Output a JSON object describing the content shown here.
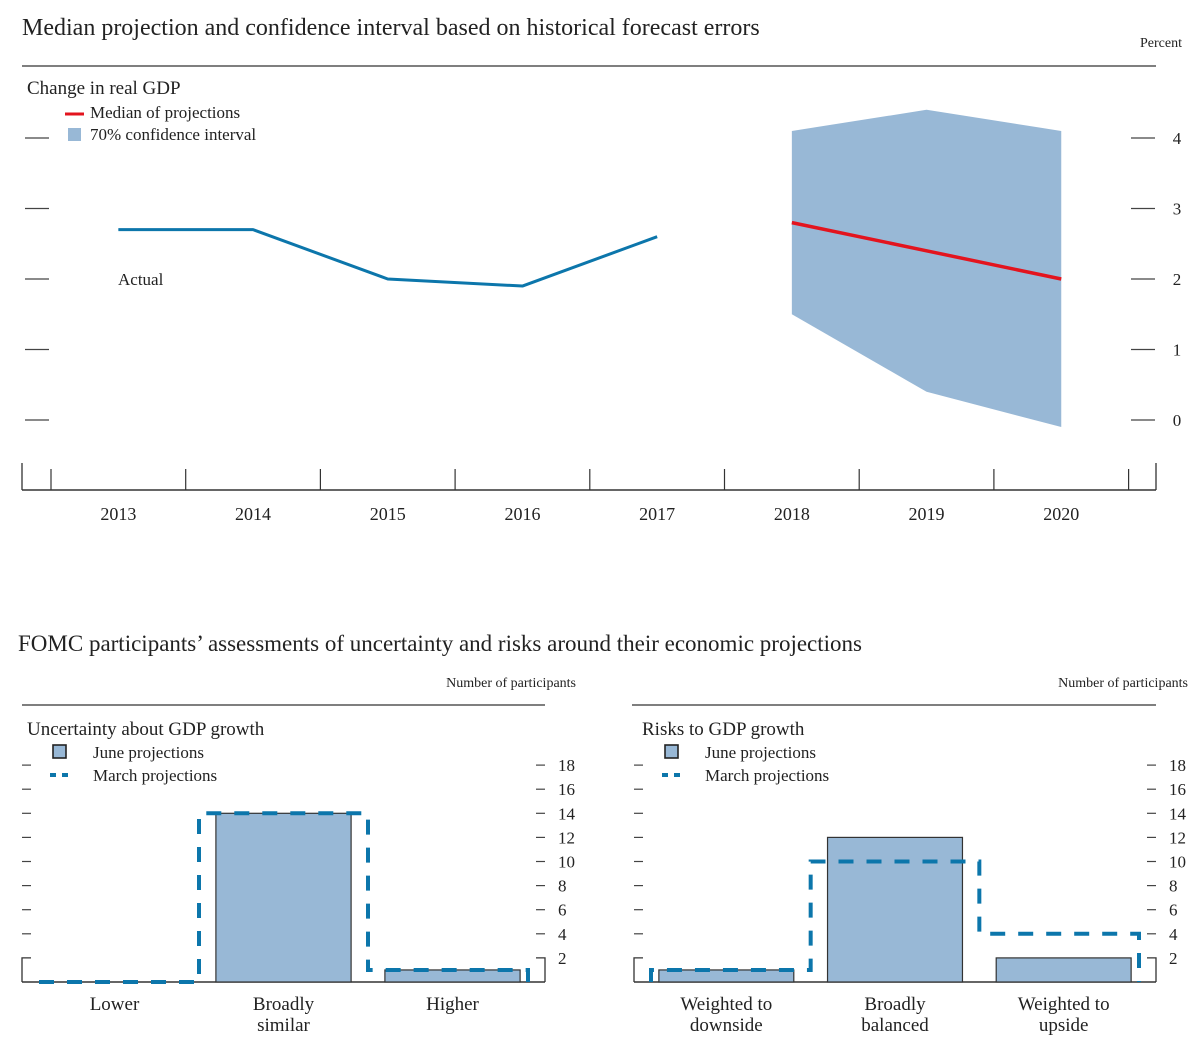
{
  "chart_data": [
    {
      "type": "line",
      "title": "Median projection and confidence interval based on historical forecast errors",
      "subtitle": "Change in real GDP",
      "unit_label": "Percent",
      "xlabel": "",
      "ylabel": "Percent",
      "categories": [
        "2013",
        "2014",
        "2015",
        "2016",
        "2017",
        "2018",
        "2019",
        "2020"
      ],
      "ylim": [
        -0.5,
        4.9
      ],
      "yticks": [
        0,
        1,
        2,
        3,
        4
      ],
      "grid": false,
      "legend": {
        "placement": "top-left",
        "entries": [
          {
            "label": "Median of projections",
            "type": "line",
            "color": "#e3141e"
          },
          {
            "label": "70% confidence interval",
            "type": "area",
            "color": "#98b8d6"
          }
        ]
      },
      "annotations": [
        {
          "text": "Actual",
          "x": "2013",
          "y": 2.0
        }
      ],
      "series": [
        {
          "name": "Actual",
          "color": "#0c76ab",
          "x": [
            "2013",
            "2014",
            "2015",
            "2016",
            "2017"
          ],
          "values": [
            2.7,
            2.7,
            2.0,
            1.9,
            2.6
          ]
        },
        {
          "name": "Median of projections",
          "color": "#e3141e",
          "x": [
            "2018",
            "2019",
            "2020"
          ],
          "values": [
            2.8,
            2.4,
            2.0
          ]
        },
        {
          "name": "70% confidence interval",
          "type": "area",
          "color": "#98b8d6",
          "x": [
            "2018",
            "2019",
            "2020"
          ],
          "upper": [
            4.1,
            4.4,
            4.1
          ],
          "lower": [
            1.5,
            0.4,
            -0.1
          ]
        }
      ]
    },
    {
      "type": "bar",
      "title": "Uncertainty about GDP growth",
      "unit_label": "Number of participants",
      "categories": [
        "Lower",
        "Broadly similar",
        "Higher"
      ],
      "category_lines": [
        [
          "Lower"
        ],
        [
          "Broadly",
          "similar"
        ],
        [
          "Higher"
        ]
      ],
      "ylim": [
        0,
        19
      ],
      "yticks": [
        2,
        4,
        6,
        8,
        10,
        12,
        14,
        16,
        18
      ],
      "grid": false,
      "legend": {
        "placement": "top-left",
        "entries": [
          {
            "label": "June projections",
            "type": "bar",
            "color": "#98b8d6"
          },
          {
            "label": "March projections",
            "type": "dashed-step",
            "color": "#0c76ab"
          }
        ]
      },
      "series": [
        {
          "name": "June projections",
          "values": [
            0,
            14,
            1
          ]
        },
        {
          "name": "March projections",
          "values": [
            0,
            14,
            1
          ]
        }
      ]
    },
    {
      "type": "bar",
      "title": "Risks to GDP growth",
      "unit_label": "Number of participants",
      "categories": [
        "Weighted to downside",
        "Broadly balanced",
        "Weighted to upside"
      ],
      "category_lines": [
        [
          "Weighted to",
          "downside"
        ],
        [
          "Broadly",
          "balanced"
        ],
        [
          "Weighted to",
          "upside"
        ]
      ],
      "ylim": [
        0,
        19
      ],
      "yticks": [
        2,
        4,
        6,
        8,
        10,
        12,
        14,
        16,
        18
      ],
      "grid": false,
      "legend": {
        "placement": "top-left",
        "entries": [
          {
            "label": "June projections",
            "type": "bar",
            "color": "#98b8d6"
          },
          {
            "label": "March projections",
            "type": "dashed-step",
            "color": "#0c76ab"
          }
        ]
      },
      "series": [
        {
          "name": "June projections",
          "values": [
            1,
            12,
            2
          ]
        },
        {
          "name": "March projections",
          "values": [
            1,
            10,
            4
          ]
        }
      ]
    }
  ],
  "section_title": "FOMC participants’ assessments of uncertainty and risks around their economic projections",
  "colors": {
    "actual": "#0c76ab",
    "median": "#e3141e",
    "band": "#98b8d6",
    "bar_fill": "#98b8d6",
    "march_dash": "#0c76ab",
    "axis": "#333333"
  }
}
